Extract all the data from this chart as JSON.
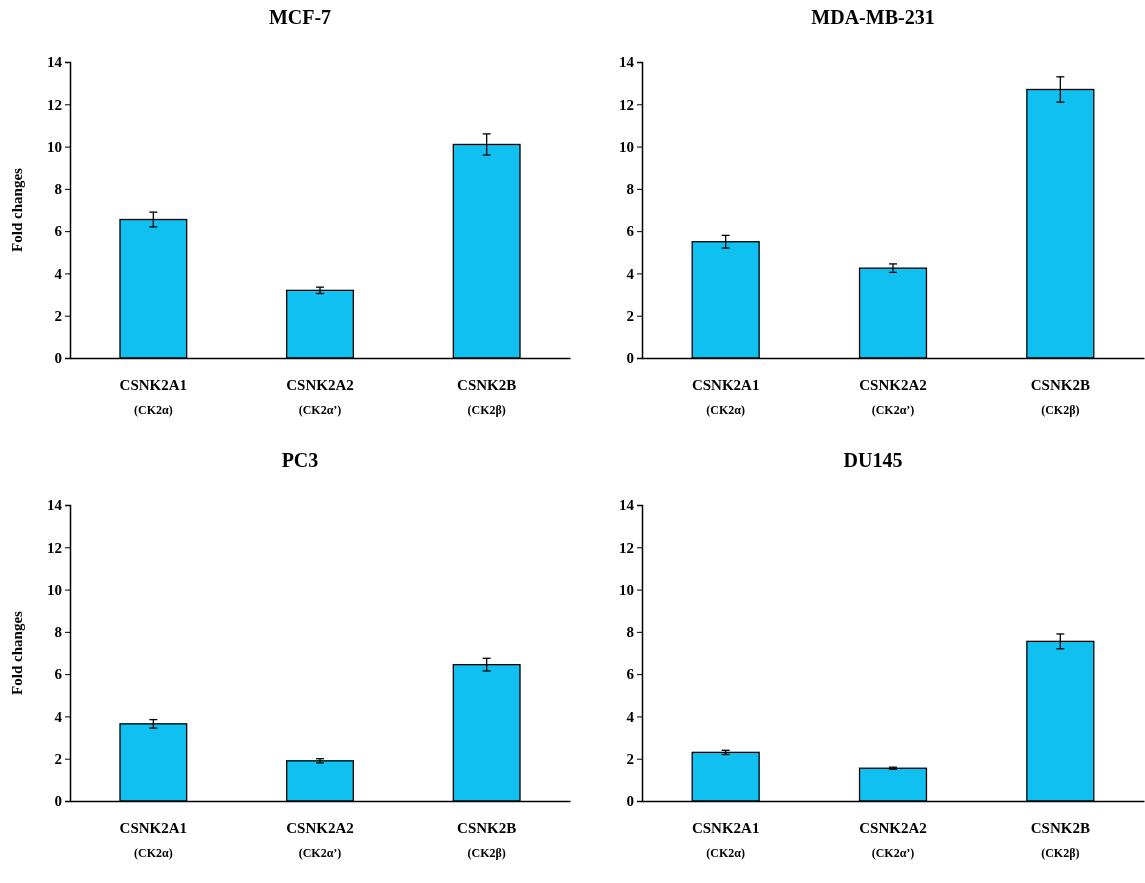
{
  "chart_data": [
    {
      "type": "bar",
      "title": "MCF-7",
      "ylabel": "Fold changes",
      "categories": [
        "CSNK2A1\n(CK2α)",
        "CSNK2A2\n(CK2α’)",
        "CSNK2B\n(CK2β)"
      ],
      "values": [
        6.55,
        3.2,
        10.1
      ],
      "errors": [
        0.35,
        0.15,
        0.5
      ],
      "color": "#0fc0f0",
      "ylim": [
        0,
        14
      ],
      "yticks": [
        0,
        2,
        4,
        6,
        8,
        10,
        12,
        14
      ],
      "grid": false
    },
    {
      "type": "bar",
      "title": "MDA-MB-231",
      "categories": [
        "CSNK2A1\n(CK2α)",
        "CSNK2A2\n(CK2α’)",
        "CSNK2B\n(CK2β)"
      ],
      "values": [
        5.5,
        4.25,
        12.7
      ],
      "errors": [
        0.3,
        0.2,
        0.6
      ],
      "color": "#0fc0f0",
      "ylim": [
        0,
        14
      ],
      "yticks": [
        0,
        2,
        4,
        6,
        8,
        10,
        12,
        14
      ],
      "grid": false
    },
    {
      "type": "bar",
      "title": "PC3",
      "ylabel": "Fold changes",
      "categories": [
        "CSNK2A1\n(CK2α)",
        "CSNK2A2\n(CK2α’)",
        "CSNK2B\n(CK2β)"
      ],
      "values": [
        3.65,
        1.9,
        6.45
      ],
      "errors": [
        0.2,
        0.1,
        0.3
      ],
      "color": "#0fc0f0",
      "ylim": [
        0,
        14
      ],
      "yticks": [
        0,
        2,
        4,
        6,
        8,
        10,
        12,
        14
      ],
      "grid": false
    },
    {
      "type": "bar",
      "title": "DU145",
      "categories": [
        "CSNK2A1\n(CK2α)",
        "CSNK2A2\n(CK2α’)",
        "CSNK2B\n(CK2β)"
      ],
      "values": [
        2.3,
        1.55,
        7.55
      ],
      "errors": [
        0.1,
        0.05,
        0.35
      ],
      "color": "#0fc0f0",
      "ylim": [
        0,
        14
      ],
      "yticks": [
        0,
        2,
        4,
        6,
        8,
        10,
        12,
        14
      ],
      "grid": false
    }
  ]
}
